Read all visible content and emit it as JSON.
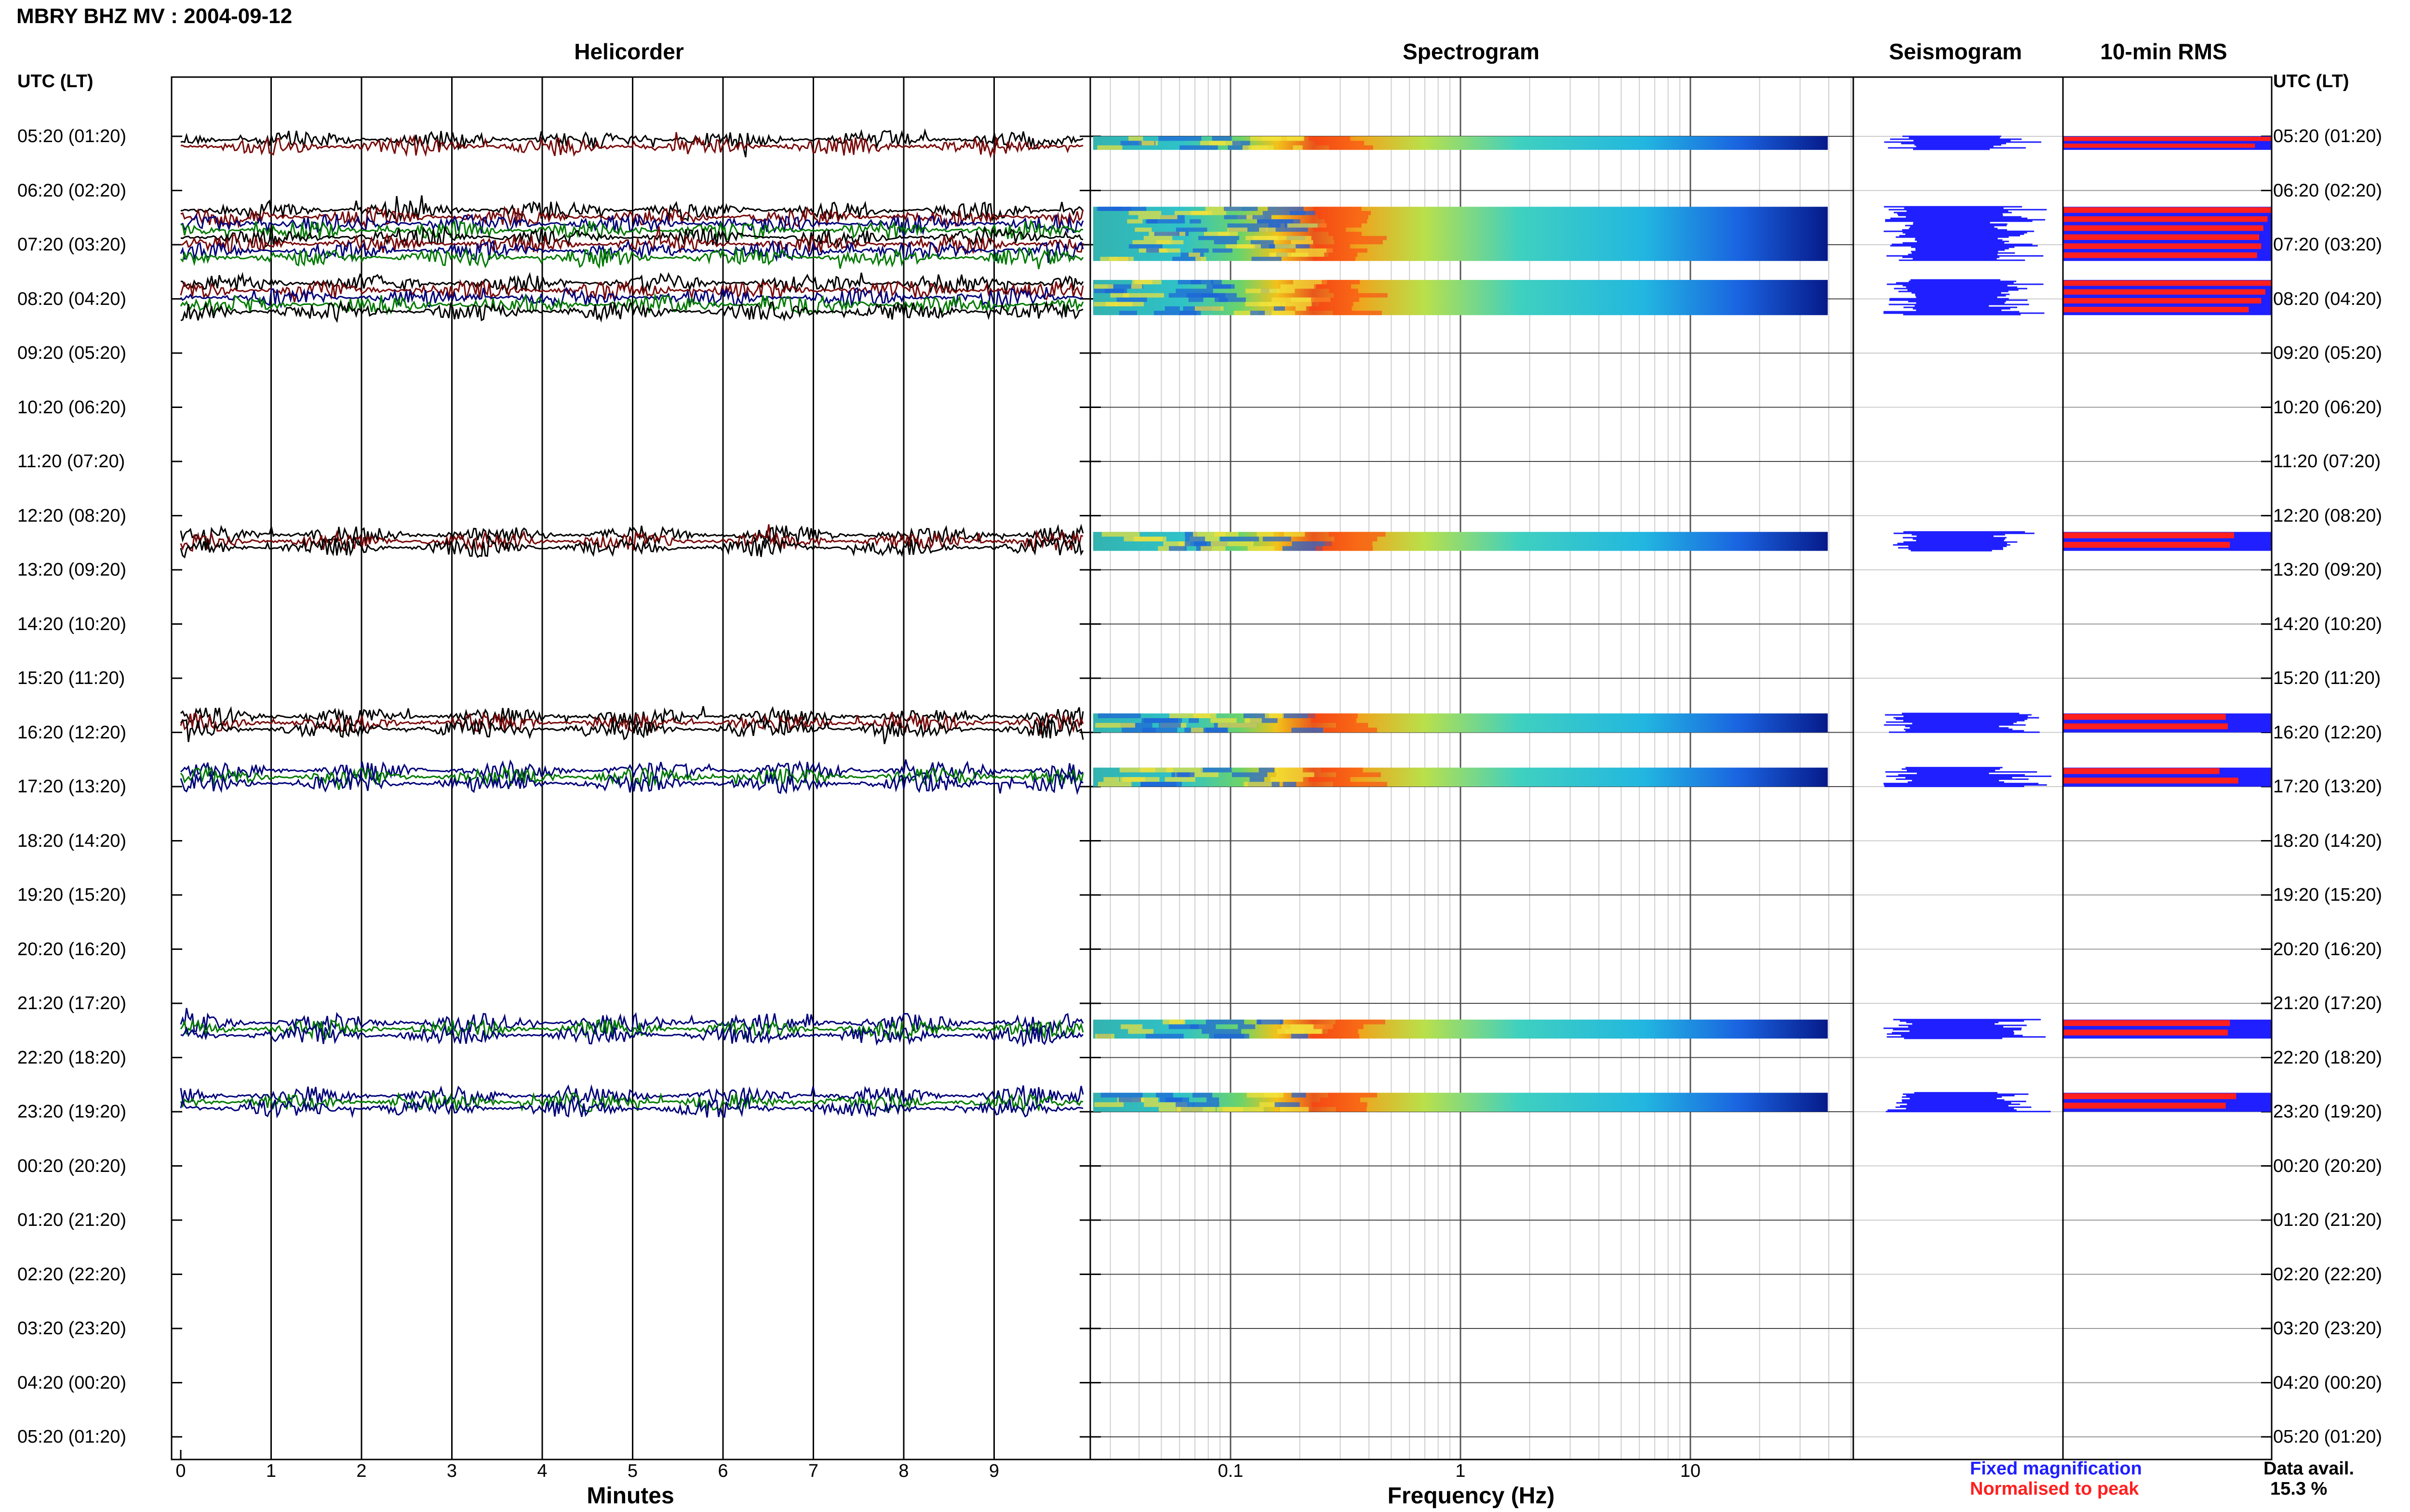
{
  "page": {
    "title": "MBRY BHZ MV : 2004-09-12"
  },
  "panels": {
    "helicorder": "Helicorder",
    "spectrogram": "Spectrogram",
    "seismogram": "Seismogram",
    "rms": "10-min RMS"
  },
  "axes": {
    "left_header": "UTC (LT)",
    "right_header": "UTC (LT)",
    "helicorder_xlabel": "Minutes",
    "spectrogram_xlabel": "Frequency (Hz)",
    "helicorder_ticks": [
      "0",
      "1",
      "2",
      "3",
      "4",
      "5",
      "6",
      "7",
      "8",
      "9"
    ],
    "spectrogram_ticks": [
      "0.1",
      "1",
      "10"
    ]
  },
  "rows": [
    "05:20 (01:20)",
    "06:20 (02:20)",
    "07:20 (03:20)",
    "08:20 (04:20)",
    "09:20 (05:20)",
    "10:20 (06:20)",
    "11:20 (07:20)",
    "12:20 (08:20)",
    "13:20 (09:20)",
    "14:20 (10:20)",
    "15:20 (11:20)",
    "16:20 (12:20)",
    "17:20 (13:20)",
    "18:20 (14:20)",
    "19:20 (15:20)",
    "20:20 (16:20)",
    "21:20 (17:20)",
    "22:20 (18:20)",
    "23:20 (19:20)",
    "00:20 (20:20)",
    "01:20 (21:20)",
    "02:20 (22:20)",
    "03:20 (23:20)",
    "04:20 (00:20)",
    "05:20 (01:20)"
  ],
  "legend": {
    "fixed": "Fixed magnification",
    "normalised": "Normalised to peak",
    "avail_label": "Data avail.",
    "avail_value": "15.3 %",
    "fixed_color": "#1f1fff",
    "normalised_color": "#ff1f1f"
  },
  "colors": {
    "trace_colors": [
      "#000000",
      "#7a0a0a",
      "#00007a",
      "#007a00"
    ],
    "seismogram": "#1f1fff",
    "rms_fixed": "#1f1fff",
    "rms_normalised": "#ff1f1f"
  },
  "chart_data": {
    "type": "heatmap",
    "title": "MBRY BHZ MV : 2004-09-12",
    "time_rows": [
      "05:20",
      "06:20",
      "07:20",
      "08:20",
      "09:20",
      "10:20",
      "11:20",
      "12:20",
      "13:20",
      "14:20",
      "15:20",
      "16:20",
      "17:20",
      "18:20",
      "19:20",
      "20:20",
      "21:20",
      "22:20",
      "23:20",
      "00:20",
      "01:20",
      "02:20",
      "03:20",
      "04:20",
      "05:20"
    ],
    "helicorder": {
      "xlabel": "Minutes",
      "xlim": [
        0,
        10
      ]
    },
    "spectrogram": {
      "xlabel": "Frequency (Hz)",
      "xscale": "log",
      "xlim": [
        0.03,
        50
      ]
    },
    "data_segments": [
      {
        "start_hour": 0.0,
        "end_hour": 0.25,
        "colors": [
          0,
          1
        ],
        "rms": [
          1.0,
          0.92
        ]
      },
      {
        "start_hour": 1.3,
        "end_hour": 2.3,
        "colors": [
          0,
          1,
          2,
          3
        ],
        "rms": [
          1.0,
          0.98,
          0.96,
          0.94,
          0.95,
          0.93
        ]
      },
      {
        "start_hour": 2.65,
        "end_hour": 3.3,
        "colors": [
          0,
          1,
          2,
          3
        ],
        "rms": [
          1.0,
          0.97,
          0.95,
          0.89
        ]
      },
      {
        "start_hour": 7.3,
        "end_hour": 7.65,
        "colors": [
          0,
          1
        ],
        "rms": [
          0.82,
          0.8
        ]
      },
      {
        "start_hour": 10.65,
        "end_hour": 11.0,
        "colors": [
          0,
          1
        ],
        "rms": [
          0.78,
          0.79
        ]
      },
      {
        "start_hour": 11.65,
        "end_hour": 12.0,
        "colors": [
          2,
          3
        ],
        "rms": [
          0.75,
          0.84
        ]
      },
      {
        "start_hour": 16.3,
        "end_hour": 16.65,
        "colors": [
          2,
          3
        ],
        "rms": [
          0.8,
          0.79
        ]
      },
      {
        "start_hour": 17.65,
        "end_hour": 18.0,
        "colors": [
          2,
          3
        ],
        "rms": [
          0.83,
          0.78
        ]
      }
    ],
    "data_availability_percent": 15.3
  }
}
